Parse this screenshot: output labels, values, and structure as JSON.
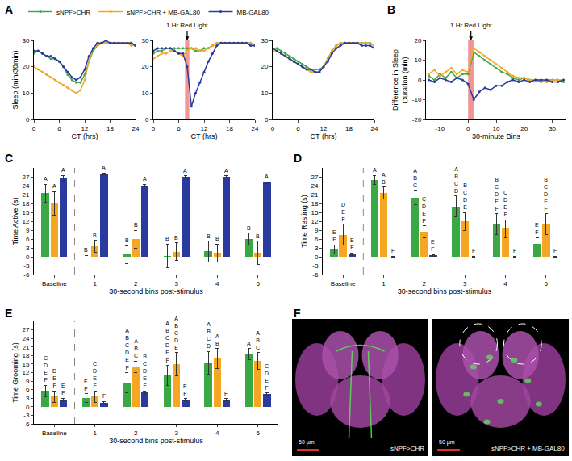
{
  "chart_data": [
    {
      "label": "A",
      "type": "line",
      "x_title": "CT (hrs)",
      "y_title": "Sleep (min/30min)",
      "xlim": [
        0,
        24
      ],
      "xticks": [
        0,
        6,
        12,
        18,
        24
      ],
      "ylim": [
        0,
        30
      ],
      "yticks": [
        0,
        10,
        20,
        30
      ],
      "legend": "top",
      "x": [
        0,
        1,
        2,
        3,
        4,
        5,
        6,
        7,
        8,
        9,
        10,
        11,
        12,
        13,
        14,
        15,
        16,
        17,
        18,
        19,
        20,
        21,
        22,
        23,
        24
      ],
      "subplots": [
        {
          "series": [
            {
              "name": "sNPF>CHR",
              "color": "#3aa844",
              "values": [
                25,
                26,
                25,
                24,
                23,
                23,
                22,
                20,
                17,
                15,
                14,
                14,
                17,
                22,
                26,
                28,
                29,
                29,
                29,
                29,
                29,
                29,
                29,
                29,
                28
              ]
            },
            {
              "name": "sNPF>CHR + MB-GAL80",
              "color": "#f5a623",
              "values": [
                20,
                19,
                18,
                17,
                16,
                15,
                14,
                13,
                12,
                11,
                10,
                11,
                15,
                22,
                27,
                28,
                29,
                29,
                29,
                29,
                29,
                29,
                29,
                28,
                28
              ]
            },
            {
              "name": "MB-GAL80",
              "color": "#2b3a9e",
              "values": [
                26,
                26,
                25,
                24,
                24,
                23,
                22,
                20,
                18,
                16,
                15,
                16,
                19,
                24,
                27,
                29,
                29,
                30,
                29,
                29,
                29,
                29,
                29,
                29,
                28
              ]
            }
          ]
        },
        {
          "annotation": "1 Hr Red Light",
          "stimulus": [
            7.5,
            8.5
          ],
          "series": [
            {
              "name": "sNPF>CHR",
              "color": "#3aa844",
              "values": [
                25,
                26,
                26,
                27,
                27,
                27,
                27,
                27,
                27,
                27,
                26,
                26,
                27,
                27,
                28,
                29,
                29,
                29,
                29,
                29,
                29,
                29,
                29,
                29,
                28
              ]
            },
            {
              "name": "sNPF>CHR + MB-GAL80",
              "color": "#f5a623",
              "values": [
                23,
                24,
                25,
                25,
                26,
                26,
                25,
                24,
                26,
                27,
                27,
                26,
                26,
                27,
                28,
                29,
                29,
                29,
                29,
                29,
                29,
                29,
                29,
                29,
                28
              ]
            },
            {
              "name": "MB-GAL80",
              "color": "#2b3a9e",
              "values": [
                26,
                27,
                27,
                27,
                27,
                26,
                25,
                25,
                20,
                5,
                10,
                14,
                18,
                22,
                25,
                28,
                29,
                29,
                29,
                29,
                29,
                29,
                29,
                28,
                28
              ]
            }
          ]
        },
        {
          "series": [
            {
              "name": "sNPF>CHR",
              "color": "#3aa844",
              "values": [
                27,
                27,
                26,
                25,
                24,
                23,
                22,
                21,
                20,
                19,
                19,
                19,
                20,
                23,
                26,
                28,
                29,
                29,
                29,
                29,
                29,
                29,
                29,
                29,
                28
              ]
            },
            {
              "name": "sNPF>CHR + MB-GAL80",
              "color": "#f5a623",
              "values": [
                26,
                26,
                25,
                24,
                23,
                22,
                21,
                20,
                19,
                18,
                18,
                18,
                20,
                23,
                26,
                28,
                29,
                29,
                29,
                29,
                29,
                29,
                29,
                29,
                28
              ]
            },
            {
              "name": "MB-GAL80",
              "color": "#2b3a9e",
              "values": [
                27,
                26,
                25,
                24,
                23,
                22,
                21,
                20,
                19,
                19,
                18,
                18,
                20,
                22,
                25,
                27,
                28,
                29,
                29,
                29,
                29,
                28,
                28,
                28,
                27
              ]
            }
          ]
        }
      ]
    },
    {
      "label": "B",
      "type": "line",
      "x_title": "30-minute Bins",
      "y_title": "Difference in Sleep Duration (min)",
      "xlim": [
        -15,
        35
      ],
      "xticks": [
        -10,
        0,
        10,
        20,
        30
      ],
      "ylim": [
        -20,
        20
      ],
      "yticks": [
        -20,
        -10,
        0,
        10,
        20
      ],
      "annotation": "1 Hr Red Light",
      "stimulus": [
        0,
        2
      ],
      "x": [
        -14,
        -12,
        -10,
        -8,
        -6,
        -4,
        -2,
        0,
        2,
        4,
        6,
        8,
        10,
        12,
        14,
        16,
        18,
        20,
        22,
        24,
        26,
        28,
        30,
        32,
        34
      ],
      "series": [
        {
          "color": "#3aa844",
          "values": [
            2,
            0,
            3,
            1,
            4,
            1,
            3,
            3,
            14,
            12,
            10,
            8,
            6,
            4,
            3,
            1,
            0,
            1,
            0,
            0,
            -1,
            0,
            0,
            0,
            -1
          ]
        },
        {
          "color": "#f5a623",
          "values": [
            3,
            5,
            2,
            4,
            6,
            3,
            5,
            4,
            16,
            14,
            12,
            10,
            8,
            6,
            4,
            2,
            1,
            1,
            0,
            0,
            0,
            -1,
            0,
            0,
            0
          ]
        },
        {
          "color": "#2b3a9e",
          "values": [
            0,
            -1,
            1,
            0,
            -1,
            1,
            0,
            -2,
            -10,
            -6,
            -4,
            -5,
            -3,
            -3,
            -1,
            0,
            -1,
            0,
            -1,
            0,
            0,
            0,
            -1,
            -1,
            0
          ]
        }
      ]
    },
    {
      "label": "C",
      "type": "bar",
      "x_title": "30-second bins post-stimulus",
      "y_title": "Time Active (s)",
      "categories": [
        "Baseline",
        "1",
        "2",
        "3",
        "4",
        "5"
      ],
      "ylim": [
        -6,
        30
      ],
      "yticks": [
        -6,
        -3,
        0,
        3,
        6,
        9,
        12,
        15,
        18,
        21,
        24,
        27
      ],
      "series": [
        {
          "color": "#3aa844",
          "values": [
            21.5,
            0,
            0.7,
            0.3,
            1.8,
            6
          ],
          "errors": [
            3,
            0.5,
            3,
            4,
            3.5,
            2
          ],
          "letters": [
            "A",
            "B",
            "B",
            "B",
            "B",
            "B"
          ]
        },
        {
          "color": "#f5a623",
          "values": [
            18,
            3.5,
            6,
            1.7,
            1.3,
            1.3
          ],
          "errors": [
            4,
            2,
            3,
            3,
            3,
            4
          ],
          "letters": [
            "A",
            "B",
            "B",
            "B",
            "B",
            "B"
          ]
        },
        {
          "color": "#2b3a9e",
          "values": [
            26.5,
            28,
            24,
            27,
            27,
            25
          ],
          "errors": [
            1,
            0.3,
            0.5,
            0.3,
            0.3,
            0.3
          ],
          "letters": [
            "A",
            "A",
            "A",
            "A",
            "A",
            "A"
          ]
        }
      ]
    },
    {
      "label": "D",
      "type": "bar",
      "x_title": "30-second bins post-stimulus",
      "y_title": "Time Resting (s)",
      "categories": [
        "Baseline",
        "1",
        "2",
        "3",
        "4",
        "5"
      ],
      "ylim": [
        -6,
        30
      ],
      "yticks": [
        -6,
        -3,
        0,
        3,
        6,
        9,
        12,
        15,
        18,
        21,
        24,
        27
      ],
      "series": [
        {
          "color": "#3aa844",
          "values": [
            2.5,
            26,
            20,
            17,
            11,
            4.5
          ],
          "errors": [
            1.5,
            1.5,
            2.5,
            3.5,
            3.5,
            2
          ],
          "letters": [
            "EF",
            "A",
            "ABC",
            "ABCD",
            "BCDEF",
            "EF"
          ]
        },
        {
          "color": "#f5a623",
          "values": [
            7.5,
            21.5,
            8.5,
            12,
            9.5,
            11
          ],
          "errors": [
            3.5,
            2,
            2,
            3,
            3,
            3.5
          ],
          "letters": [
            "DEF",
            "AB",
            "CDEF",
            "BCDE",
            "CDEF",
            "BCDEF"
          ]
        },
        {
          "color": "#2b3a9e",
          "values": [
            0.8,
            0,
            0.5,
            0,
            0,
            0
          ],
          "errors": [
            0.5,
            0.2,
            0.3,
            0.2,
            0.2,
            0.2
          ],
          "letters": [
            "EF",
            "F",
            "EF",
            "F",
            "F",
            "F"
          ]
        }
      ]
    },
    {
      "label": "E",
      "type": "bar",
      "x_title": "30-second bins post-stimulus",
      "y_title": "Time Grooming (s)",
      "categories": [
        "Baseline",
        "1",
        "2",
        "3",
        "4",
        "5"
      ],
      "ylim": [
        -6,
        30
      ],
      "yticks": [
        -6,
        -3,
        0,
        3,
        6,
        9,
        12,
        15,
        18,
        21,
        24,
        27
      ],
      "series": [
        {
          "color": "#3aa844",
          "values": [
            5.5,
            3,
            8.5,
            11,
            15.5,
            18.5
          ],
          "errors": [
            2,
            1.5,
            3.5,
            3.5,
            4,
            2
          ],
          "letters": [
            "CDEF",
            "EF",
            "ABCDEF",
            "ABCDEF",
            "ABCD",
            "A"
          ]
        },
        {
          "color": "#f5a623",
          "values": [
            3.5,
            3.5,
            14,
            15,
            17,
            16
          ],
          "errors": [
            2,
            2,
            2,
            4,
            3.5,
            3
          ],
          "letters": [
            "DEF",
            "CDEF",
            "ABC",
            "ABCDE",
            "AB",
            "ABC"
          ]
        },
        {
          "color": "#2b3a9e",
          "values": [
            2.5,
            1.5,
            5,
            2.5,
            2.5,
            4.5
          ],
          "errors": [
            0.5,
            0.3,
            0.5,
            0.4,
            0.4,
            0.4
          ],
          "letters": [
            "EF",
            "F",
            "BCDEF",
            "EF",
            "F",
            "CDEF"
          ]
        }
      ]
    },
    {
      "label": "F",
      "type": "image",
      "images": [
        {
          "caption": "sNPF>CHR",
          "scale_bar": "50 µm"
        },
        {
          "caption": "sNPF>CHR + MB-GAL80",
          "scale_bar": "50 µm"
        }
      ]
    }
  ]
}
